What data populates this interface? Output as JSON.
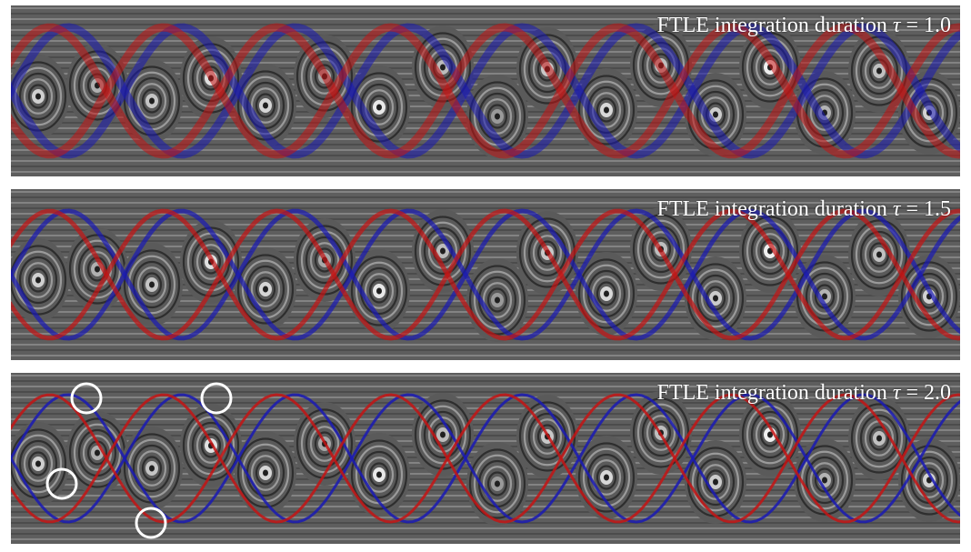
{
  "figure": {
    "panels": [
      {
        "caption_prefix": "FTLE integration duration",
        "symbol": "τ",
        "equals": "=",
        "value": "1.0",
        "ridge_sharpness": "diffuse",
        "markers": 0
      },
      {
        "caption_prefix": "FTLE integration duration",
        "symbol": "τ",
        "equals": "=",
        "value": "1.5",
        "ridge_sharpness": "medium",
        "markers": 0
      },
      {
        "caption_prefix": "FTLE integration duration",
        "symbol": "τ",
        "equals": "=",
        "value": "2.0",
        "ridge_sharpness": "sharp",
        "markers": 4
      }
    ],
    "colors": {
      "background": "#ffffff",
      "forward_ftle_ridge": "#c41414",
      "backward_ftle_ridge": "#1a1ab4",
      "marker_circle": "#ffffff"
    }
  }
}
